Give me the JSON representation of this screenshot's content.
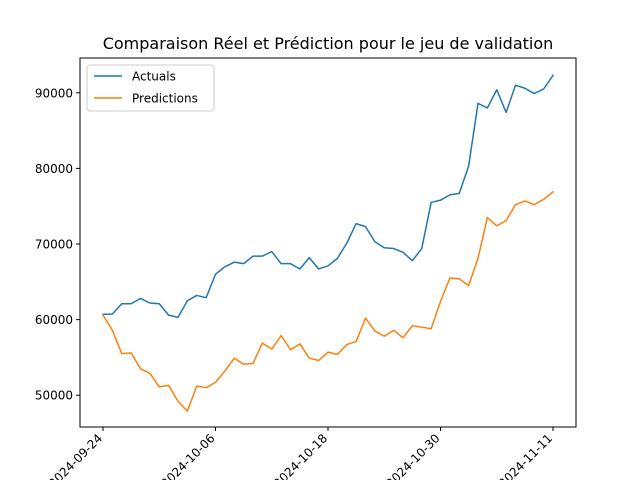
{
  "chart_data": {
    "type": "line",
    "title": "Comparaison Réel et Prédiction pour le jeu de validation",
    "xlabel": "",
    "ylabel": "",
    "x_start": "2024-09-24",
    "x_end": "2024-11-11",
    "x_ticks": [
      "2024-09-24",
      "2024-10-06",
      "2024-10-18",
      "2024-10-30",
      "2024-11-11"
    ],
    "y_ticks": [
      50000,
      60000,
      70000,
      80000,
      90000
    ],
    "y_tick_labels": [
      "50000",
      "60000",
      "70000",
      "80000",
      "90000"
    ],
    "ylim": [
      45800,
      94600
    ],
    "grid": false,
    "legend_position": "top-left",
    "series": [
      {
        "name": "Actuals",
        "color": "#1f77b4",
        "values": [
          60700,
          60750,
          62100,
          62100,
          62800,
          62200,
          62100,
          60600,
          60300,
          62500,
          63200,
          62900,
          66000,
          67000,
          67600,
          67400,
          68400,
          68400,
          69000,
          67400,
          67400,
          66700,
          68200,
          66700,
          67100,
          68100,
          70100,
          72700,
          72300,
          70300,
          69500,
          69400,
          68900,
          67800,
          69400,
          75500,
          75800,
          76500,
          76700,
          80300,
          88600,
          88000,
          90400,
          87400,
          91000,
          90600,
          89900,
          90500,
          92300
        ]
      },
      {
        "name": "Predictions",
        "color": "#ff7f0e",
        "values": [
          60600,
          58600,
          55500,
          55600,
          53500,
          52900,
          51100,
          51300,
          49200,
          47900,
          51200,
          51000,
          51700,
          53200,
          54900,
          54100,
          54200,
          56900,
          56100,
          57900,
          56000,
          56800,
          54900,
          54600,
          55700,
          55400,
          56700,
          57100,
          60200,
          58500,
          57800,
          58600,
          57600,
          59200,
          59000,
          58800,
          62400,
          65500,
          65400,
          64500,
          68100,
          73500,
          72400,
          73100,
          75200,
          75700,
          75200,
          75900,
          76900
        ]
      }
    ]
  }
}
